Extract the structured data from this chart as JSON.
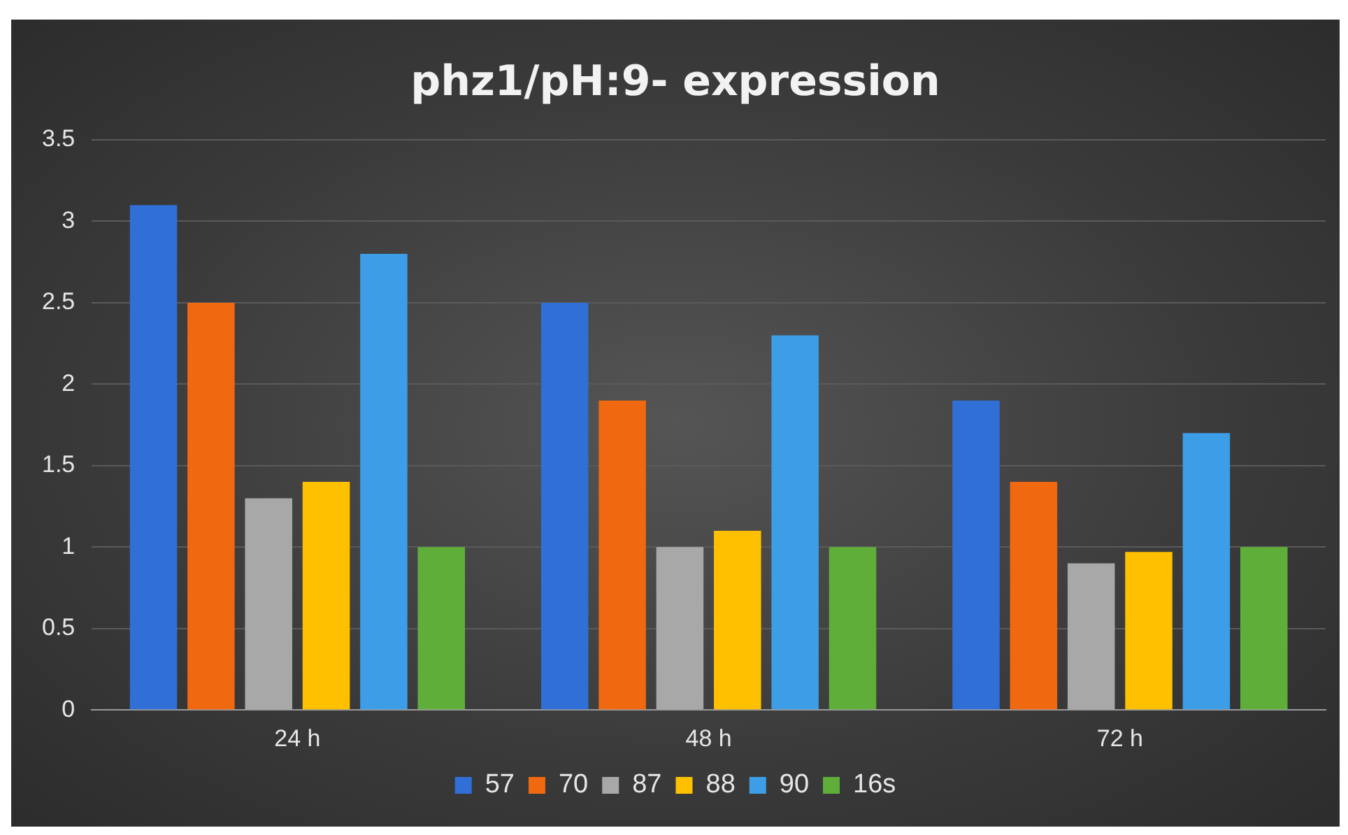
{
  "chart_data": {
    "type": "bar",
    "title": "phz1/pH:9- expression",
    "categories": [
      "24 h",
      "48 h",
      "72 h"
    ],
    "series": [
      {
        "name": "57",
        "color": "#2f6fd6",
        "values": [
          3.1,
          2.5,
          1.9
        ]
      },
      {
        "name": "70",
        "color": "#f0680f",
        "values": [
          2.5,
          1.9,
          1.4
        ]
      },
      {
        "name": "87",
        "color": "#a8a8a8",
        "values": [
          1.3,
          1.0,
          0.9
        ]
      },
      {
        "name": "88",
        "color": "#ffc000",
        "values": [
          1.4,
          1.1,
          0.97
        ]
      },
      {
        "name": "90",
        "color": "#3d9de6",
        "values": [
          2.8,
          2.3,
          1.7
        ]
      },
      {
        "name": "16s",
        "color": "#5fae3a",
        "values": [
          1.0,
          1.0,
          1.0
        ]
      }
    ],
    "ylim": [
      0,
      3.5
    ],
    "yticks": [
      0,
      0.5,
      1,
      1.5,
      2,
      2.5,
      3,
      3.5
    ],
    "grid": "y",
    "legend": "bottom"
  }
}
